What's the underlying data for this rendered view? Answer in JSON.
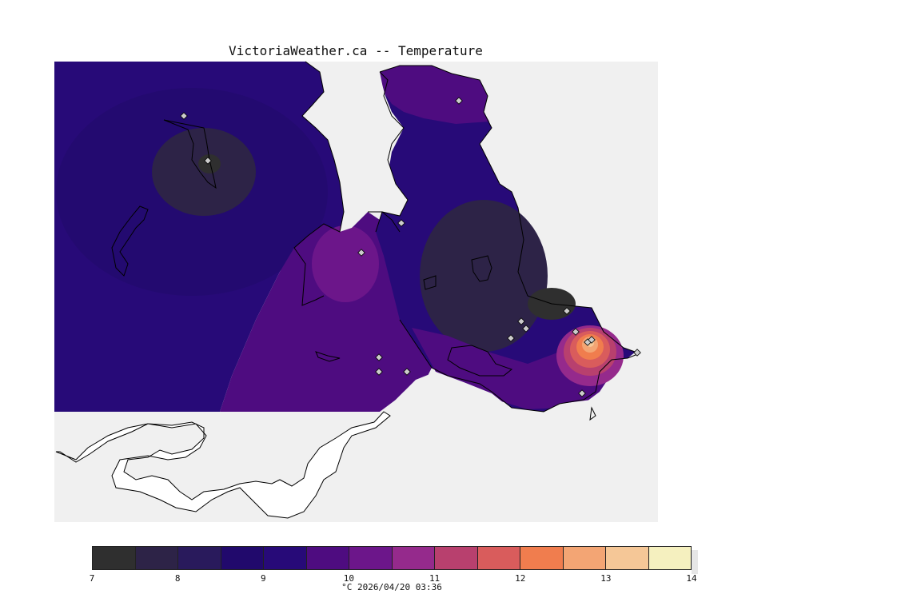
{
  "title": "VictoriaWeather.ca -- Temperature",
  "caption": "°C  2026/04/20 03:36",
  "map_type": "temperature contour map",
  "colorbar": {
    "ticks": [
      "7",
      "8",
      "9",
      "10",
      "11",
      "12",
      "13",
      "14"
    ],
    "colors": [
      "#2f2f2f",
      "#2d2347",
      "#291a5c",
      "#21096c",
      "#270a78",
      "#4e0c80",
      "#6c168a",
      "#952a8c",
      "#b8406e",
      "#d95c5c",
      "#f07d4e",
      "#f3a574",
      "#f5c797",
      "#f5f0bf"
    ]
  },
  "colors": {
    "land": "#f0f0f0",
    "water": "#ffffff",
    "coast": "#000000",
    "station": "#cccccc"
  },
  "stations_count": 17
}
